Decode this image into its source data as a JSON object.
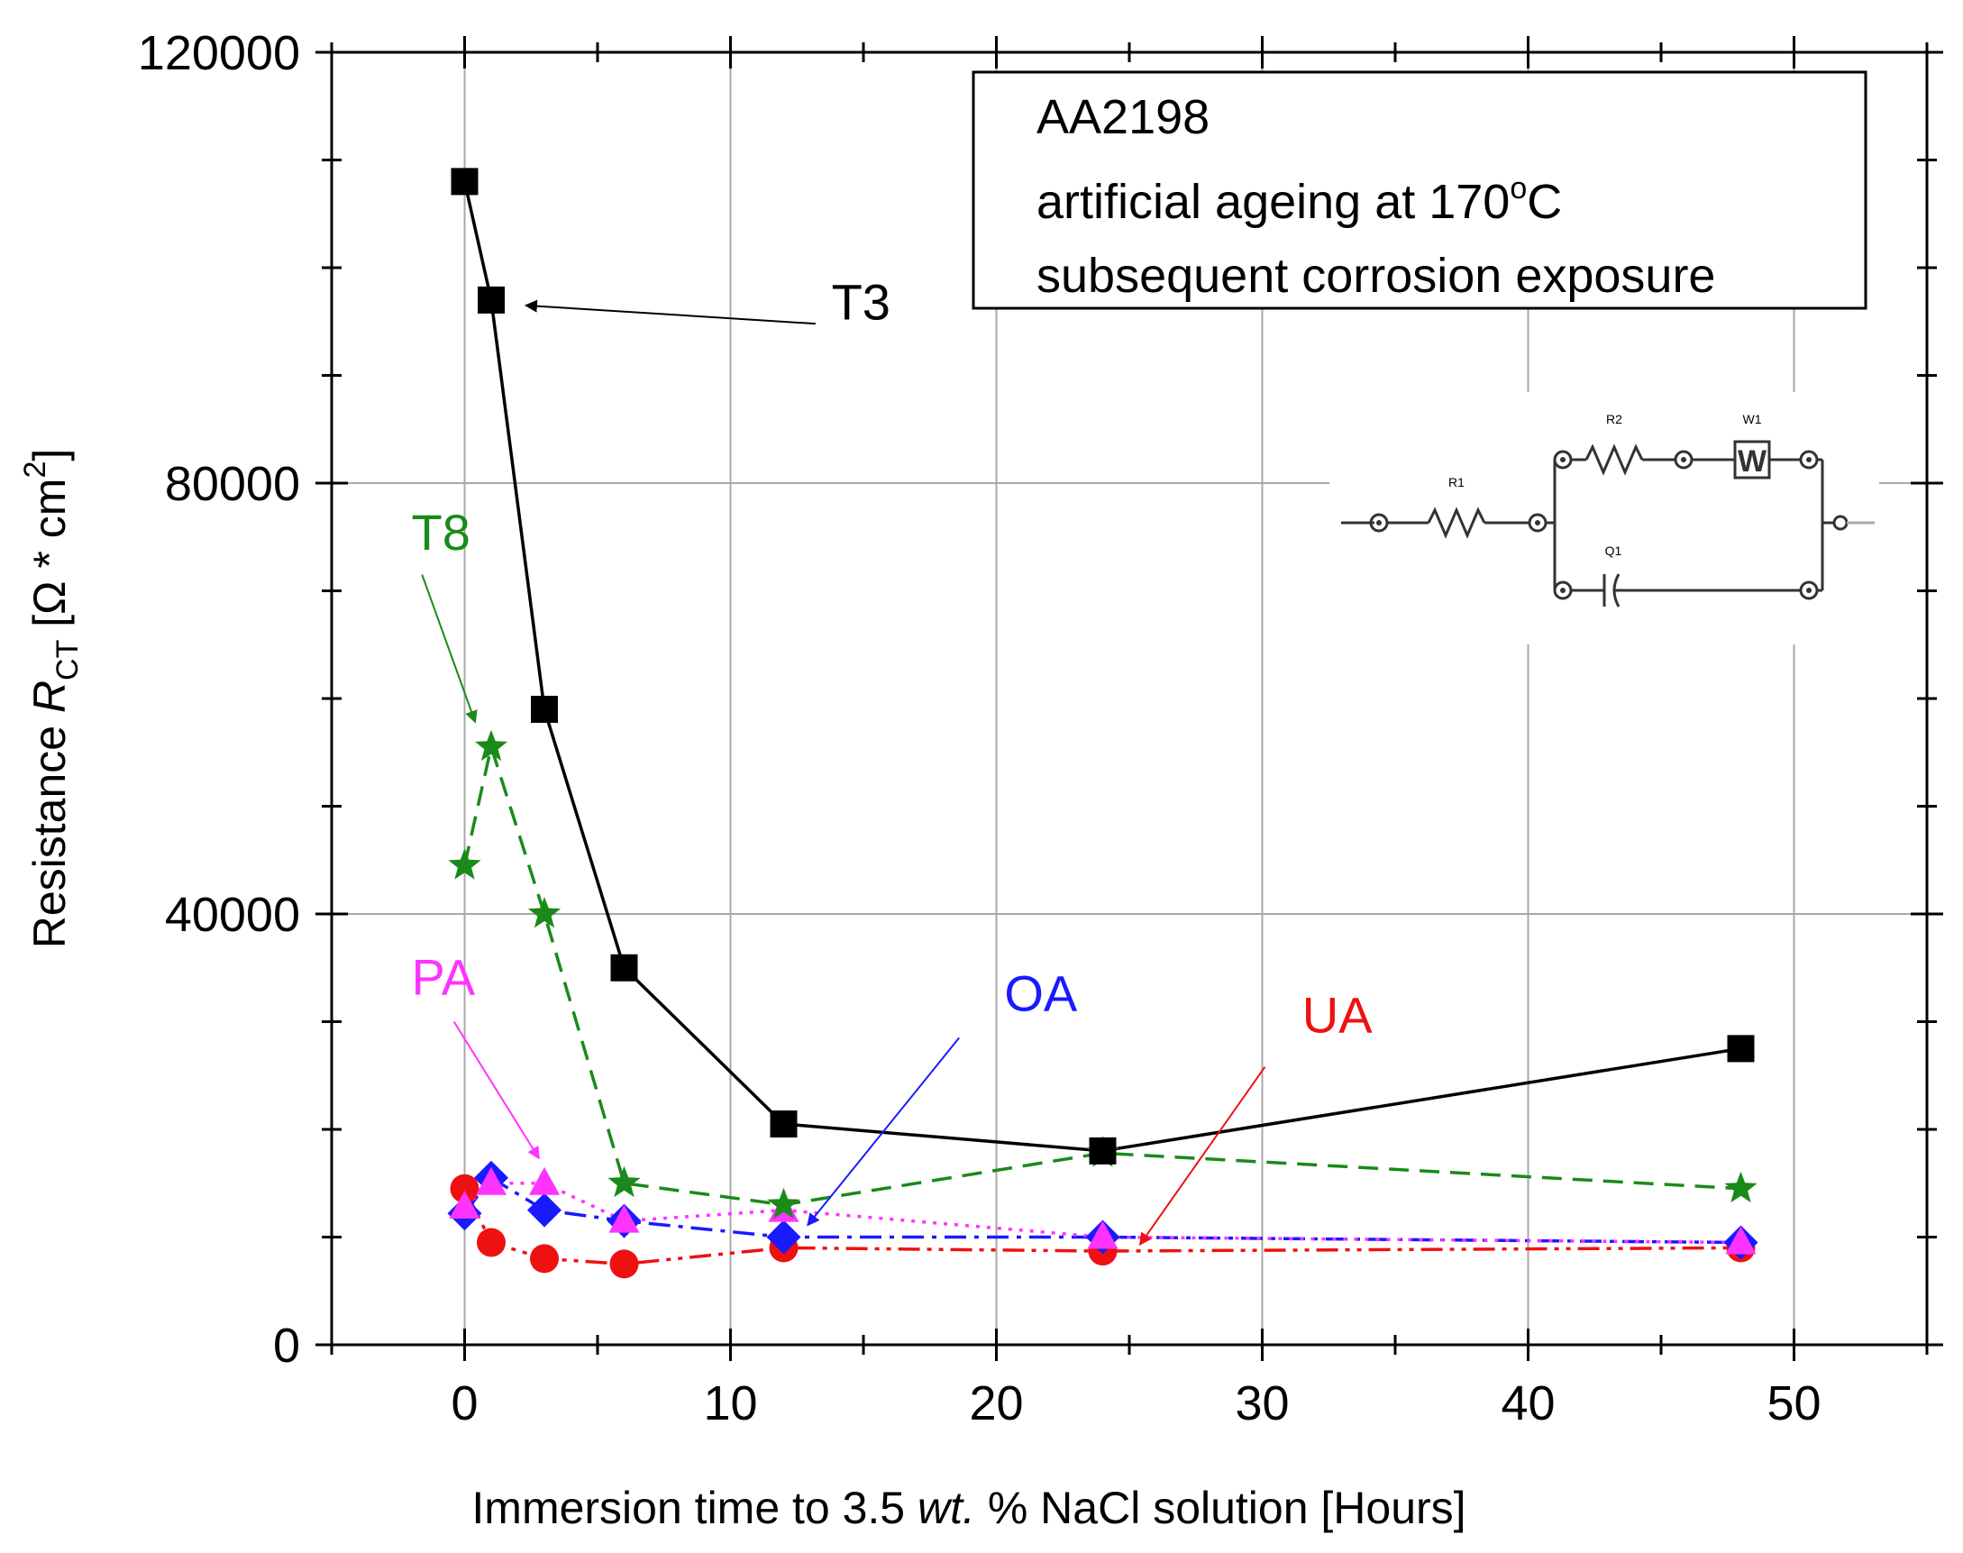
{
  "chart_data": {
    "type": "line",
    "title": "",
    "xlabel": {
      "prefix": "Immersion time to 3.5 ",
      "italic": "wt.",
      "suffix": " % NaCl solution [Hours]"
    },
    "ylabel": {
      "prefix": "Resistance ",
      "italic": "R",
      "subscript": "CT",
      "unit_open": " [Ω * cm",
      "unit_sup": "2",
      "unit_close": "]"
    },
    "xlim": [
      -5,
      55
    ],
    "ylim": [
      0,
      120000
    ],
    "xticks": [
      0,
      10,
      20,
      30,
      40,
      50
    ],
    "xtick_labels": [
      "0",
      "10",
      "20",
      "30",
      "40",
      "50"
    ],
    "yticks": [
      0,
      40000,
      80000,
      120000
    ],
    "ytick_labels": [
      "0",
      "40000",
      "80000",
      "120000"
    ],
    "grid": true,
    "legend_box": {
      "line1": "AA2198",
      "line2_prefix": "artificial ageing at 170",
      "line2_degree": "o",
      "line2_suffix": "C",
      "line3": "subsequent corrosion exposure"
    },
    "series": [
      {
        "name": "T3",
        "color": "#000000",
        "marker": "square",
        "dash": "solid",
        "x": [
          0,
          1,
          3,
          6,
          12,
          24,
          48
        ],
        "values": [
          108000,
          97000,
          59000,
          35000,
          20500,
          18000,
          27500
        ]
      },
      {
        "name": "T8",
        "color": "#1a8a1a",
        "marker": "star",
        "dash": "dashed",
        "x": [
          0,
          1,
          3,
          6,
          12,
          24,
          48
        ],
        "values": [
          44500,
          55500,
          40000,
          15000,
          13000,
          17800,
          14500
        ]
      },
      {
        "name": "PA",
        "color": "#ff33ff",
        "marker": "triangle",
        "dash": "dotted",
        "x": [
          0,
          1,
          3,
          6,
          12,
          24,
          48
        ],
        "values": [
          12800,
          15000,
          15000,
          11500,
          12500,
          10000,
          9500
        ]
      },
      {
        "name": "OA",
        "color": "#1a1aff",
        "marker": "diamond",
        "dash": "dashdot",
        "x": [
          0,
          1,
          3,
          6,
          12,
          24,
          48
        ],
        "values": [
          12200,
          15500,
          12500,
          11500,
          10000,
          10000,
          9500
        ]
      },
      {
        "name": "UA",
        "color": "#ee1111",
        "marker": "circle",
        "dash": "dashdotdot",
        "x": [
          0,
          1,
          3,
          6,
          12,
          24,
          48
        ],
        "values": [
          14500,
          9500,
          8000,
          7500,
          9000,
          8700,
          9000
        ]
      }
    ],
    "annotations": [
      {
        "text": "T3",
        "color": "#000000",
        "text_x": 13.8,
        "text_y": 95200,
        "arrow_from": [
          13.2,
          94800
        ],
        "arrow_to": [
          2.3,
          96500
        ]
      },
      {
        "text": "T8",
        "color": "#1a8a1a",
        "text_x": -2.0,
        "text_y": 73800,
        "arrow_from": [
          -1.6,
          71500
        ],
        "arrow_to": [
          0.4,
          57800
        ]
      },
      {
        "text": "PA",
        "color": "#ff33ff",
        "text_x": -2.0,
        "text_y": 32500,
        "arrow_from": [
          -0.4,
          30000
        ],
        "arrow_to": [
          2.8,
          17300
        ]
      },
      {
        "text": "OA",
        "color": "#1a1aff",
        "text_x": 20.3,
        "text_y": 31000,
        "arrow_from": [
          18.6,
          28500
        ],
        "arrow_to": [
          12.9,
          11100
        ]
      },
      {
        "text": "UA",
        "color": "#ee1111",
        "text_x": 31.5,
        "text_y": 29000,
        "arrow_from": [
          30.1,
          25800
        ],
        "arrow_to": [
          25.4,
          9300
        ]
      }
    ],
    "inset_circuit": {
      "labels": [
        "R1",
        "R2",
        "W1",
        "Q1"
      ],
      "w_symbol": "W"
    }
  }
}
